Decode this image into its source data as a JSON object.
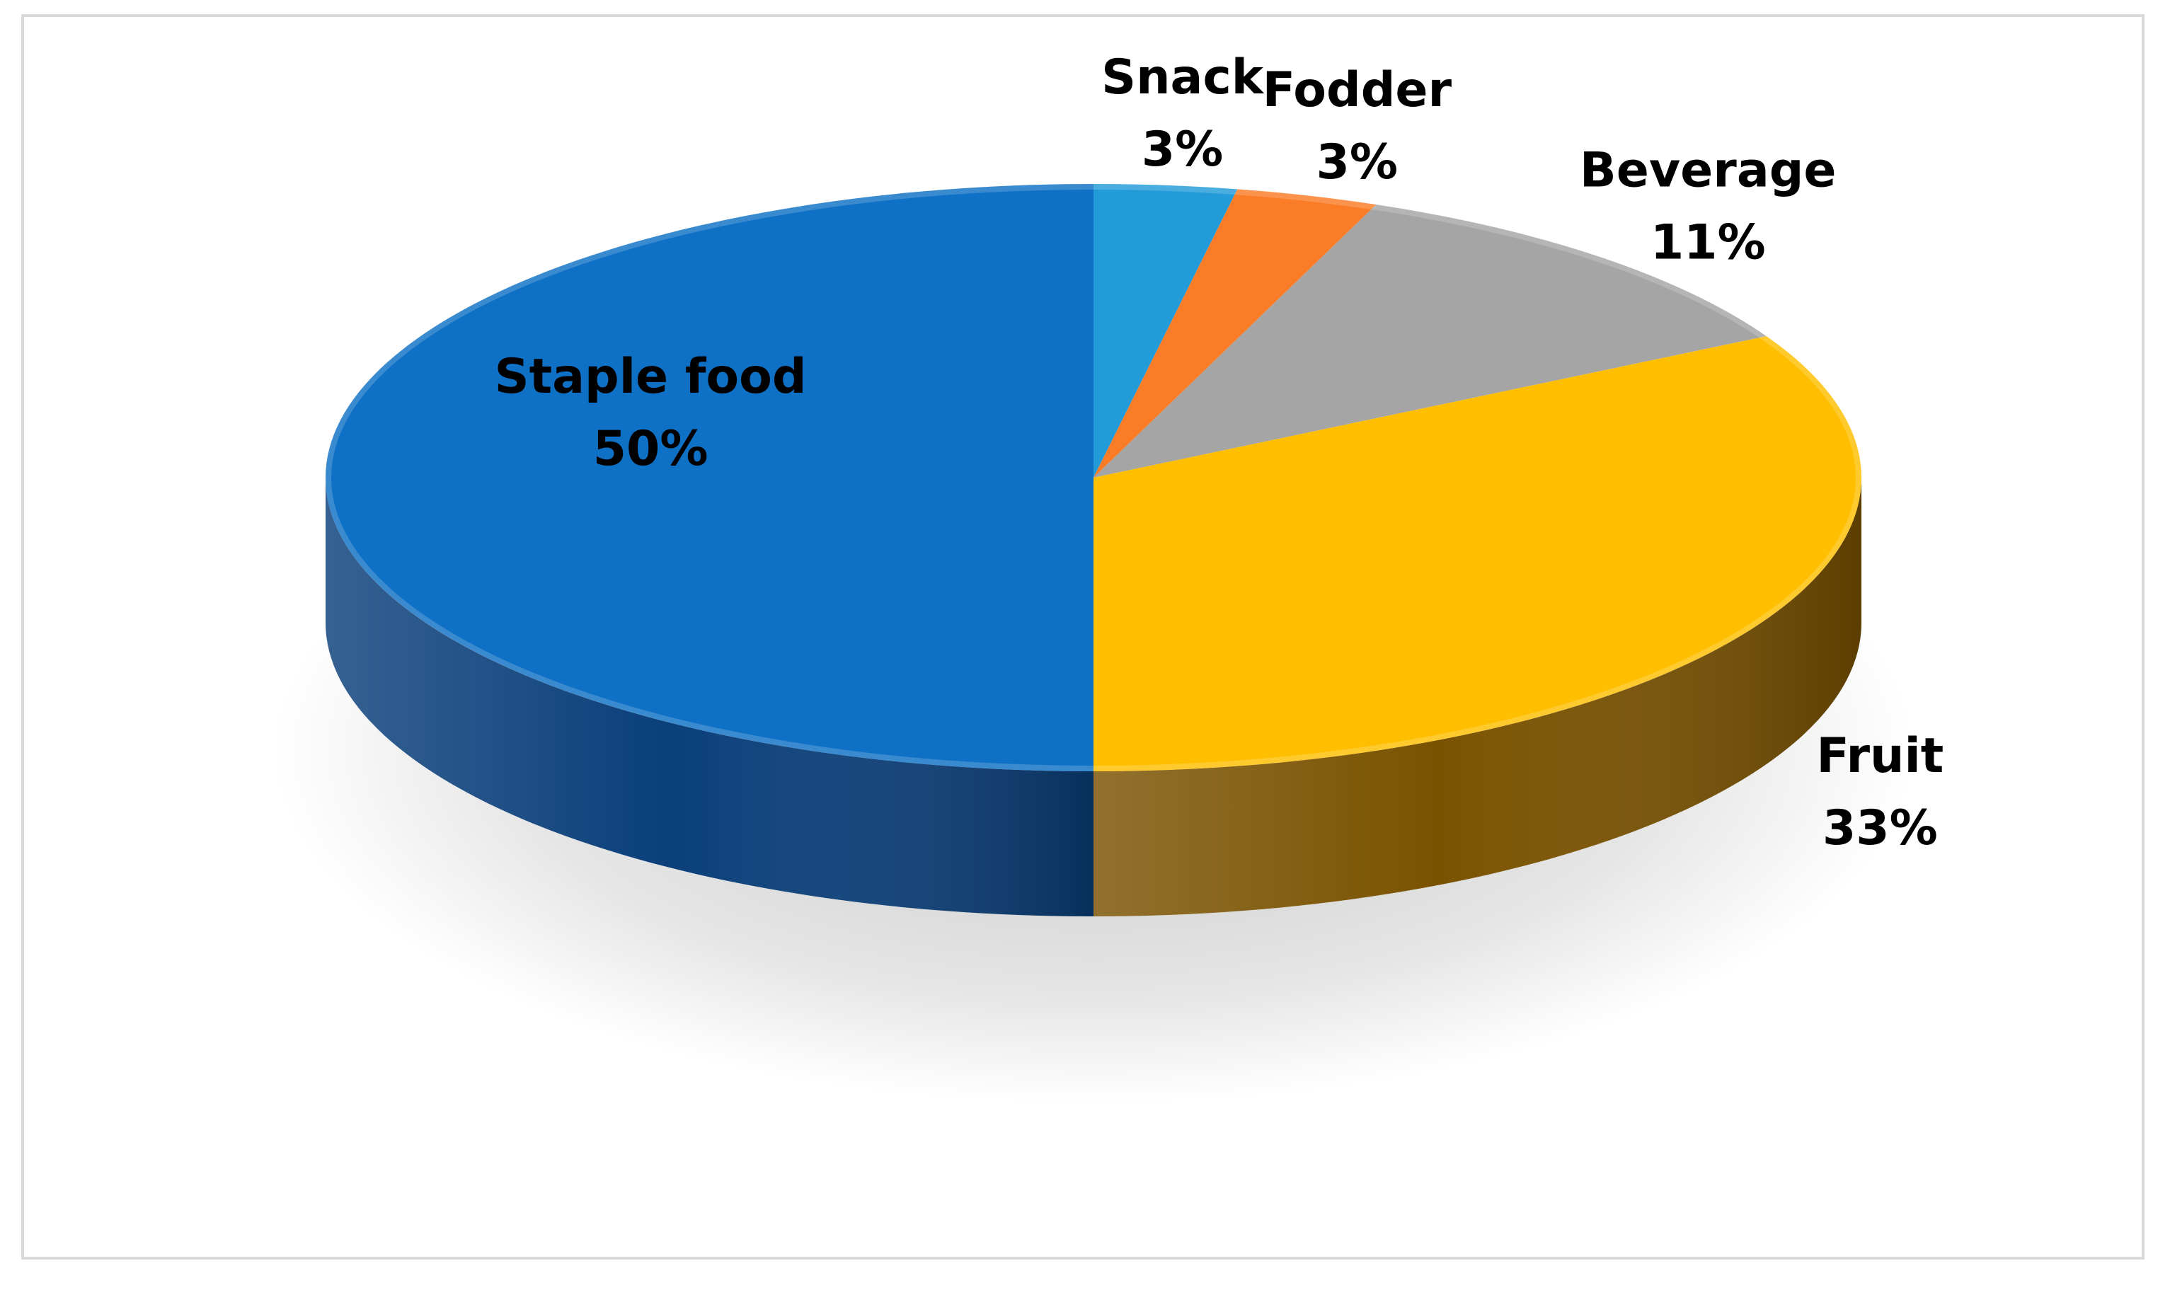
{
  "chart_data": {
    "type": "pie",
    "style": "3d",
    "title": "",
    "legend": "none",
    "categories": [
      "Snack",
      "Fodder",
      "Beverage",
      "Fruit",
      "Staple food"
    ],
    "values": [
      3,
      3,
      11,
      33,
      50
    ],
    "labels": [
      "3%",
      "3%",
      "11%",
      "33%",
      "50%"
    ],
    "colors": [
      "#229bd8",
      "#fb7c26",
      "#a5a5a5",
      "#ffbf00",
      "#0f71c6"
    ],
    "side_colors": [
      "#136f9e",
      "#b35410",
      "#6e6e6e",
      "#7a5200",
      "#0a3f7a"
    ]
  }
}
